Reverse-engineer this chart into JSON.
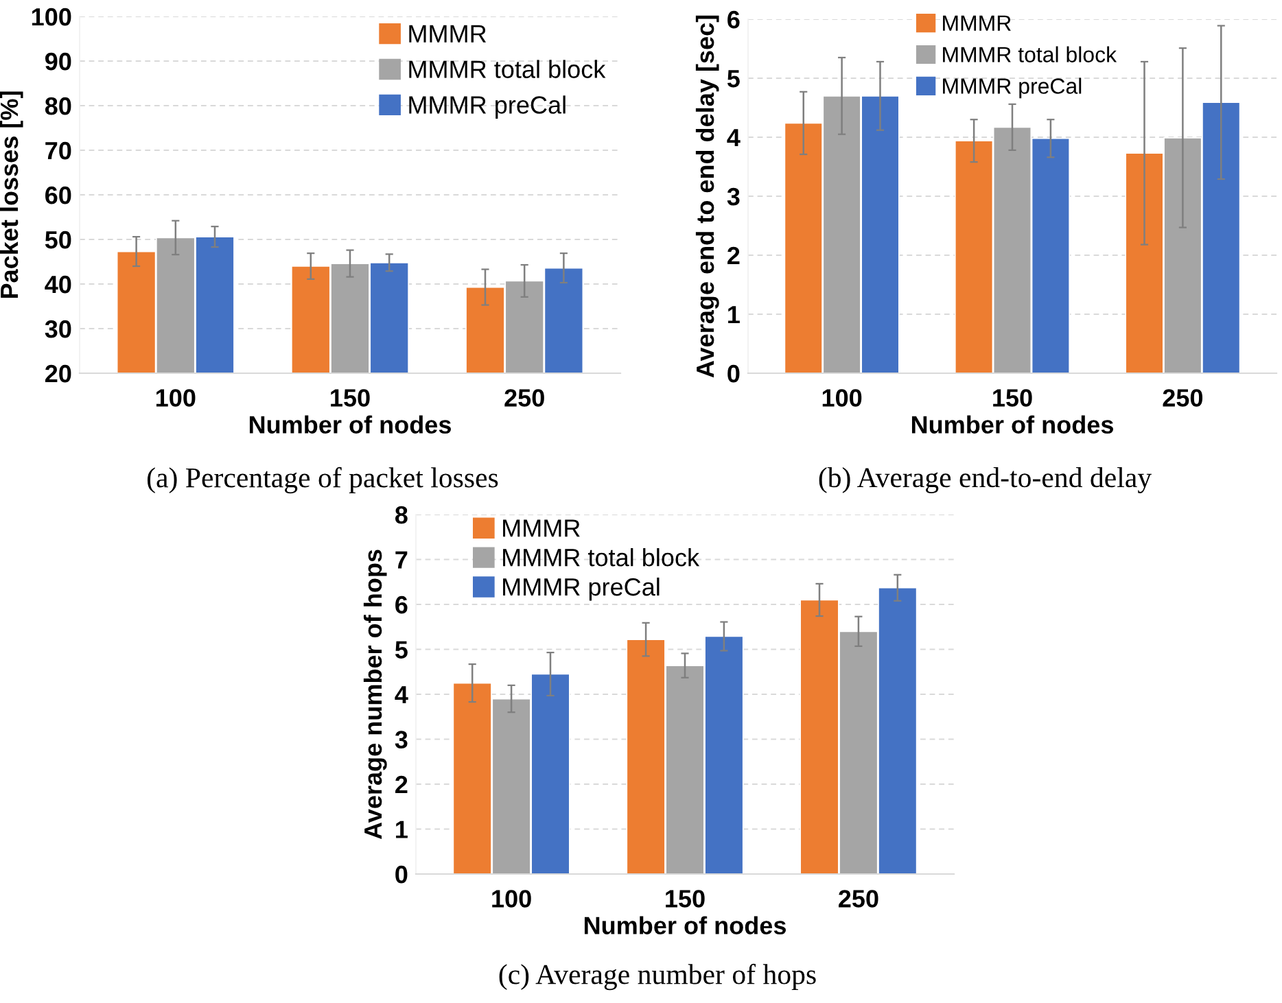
{
  "chart_data": [
    {
      "type": "bar",
      "title": "(a) Percentage of packet losses",
      "xlabel": "Number of nodes",
      "ylabel": "Packet losses [%]",
      "categories": [
        "100",
        "150",
        "250"
      ],
      "ylim": [
        20,
        100
      ],
      "yticks": [
        20,
        30,
        40,
        50,
        60,
        70,
        80,
        90,
        100
      ],
      "grid": "y",
      "legend": "top right",
      "series": [
        {
          "name": "MMMR",
          "color": "#ed7d31",
          "values": [
            47.3,
            44.0,
            39.3
          ],
          "errors": [
            3.3,
            2.9,
            4.0
          ]
        },
        {
          "name": "MMMR total block",
          "color": "#a5a5a5",
          "values": [
            50.4,
            44.6,
            40.7
          ],
          "errors": [
            3.8,
            3.0,
            3.6
          ]
        },
        {
          "name": "MMMR preCal",
          "color": "#4472c4",
          "values": [
            50.6,
            44.8,
            43.6
          ],
          "errors": [
            2.3,
            1.9,
            3.3
          ]
        }
      ]
    },
    {
      "type": "bar",
      "title": "(b) Average end-to-end delay",
      "xlabel": "Number of nodes",
      "ylabel": "Average end to end delay [sec]",
      "categories": [
        "100",
        "150",
        "250"
      ],
      "ylim": [
        0,
        6
      ],
      "yticks": [
        0,
        1,
        2,
        3,
        4,
        5,
        6
      ],
      "grid": "y",
      "legend": "top",
      "series": [
        {
          "name": "MMMR",
          "color": "#ed7d31",
          "values": [
            4.24,
            3.94,
            3.73
          ],
          "errors": [
            0.53,
            0.36,
            1.55
          ]
        },
        {
          "name": "MMMR total block",
          "color": "#a5a5a5",
          "values": [
            4.7,
            4.17,
            3.99
          ],
          "errors": [
            0.65,
            0.39,
            1.52
          ]
        },
        {
          "name": "MMMR preCal",
          "color": "#4472c4",
          "values": [
            4.7,
            3.98,
            4.59
          ],
          "errors": [
            0.58,
            0.32,
            1.3
          ]
        }
      ]
    },
    {
      "type": "bar",
      "title": "(c) Average number of hops",
      "xlabel": "Number of nodes",
      "ylabel": "Average number of hops",
      "categories": [
        "100",
        "150",
        "250"
      ],
      "ylim": [
        0,
        8
      ],
      "yticks": [
        0,
        1,
        2,
        3,
        4,
        5,
        6,
        7,
        8
      ],
      "grid": "y",
      "legend": "top left",
      "series": [
        {
          "name": "MMMR",
          "color": "#ed7d31",
          "values": [
            4.25,
            5.22,
            6.1
          ],
          "errors": [
            0.42,
            0.37,
            0.36
          ]
        },
        {
          "name": "MMMR total block",
          "color": "#a5a5a5",
          "values": [
            3.9,
            4.64,
            5.4
          ],
          "errors": [
            0.3,
            0.27,
            0.33
          ]
        },
        {
          "name": "MMMR preCal",
          "color": "#4472c4",
          "values": [
            4.45,
            5.29,
            6.37
          ],
          "errors": [
            0.48,
            0.32,
            0.29
          ]
        }
      ]
    }
  ]
}
